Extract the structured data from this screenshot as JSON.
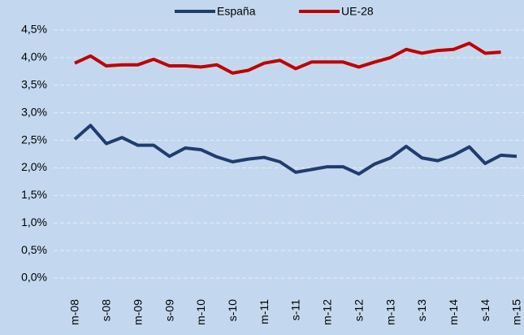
{
  "chart_data": {
    "type": "line",
    "categories": [
      "m-08",
      null,
      "s-08",
      null,
      "m-09",
      null,
      "s-09",
      null,
      "m-10",
      null,
      "s-10",
      null,
      "m-11",
      null,
      "s-11",
      null,
      "m-12",
      null,
      "s-12",
      null,
      "m-13",
      null,
      "s-13",
      null,
      "m-14",
      null,
      "s-14",
      null,
      "m-15"
    ],
    "series": [
      {
        "name": "España",
        "color": "#1f3d6e",
        "values": [
          2.52,
          2.77,
          2.44,
          2.55,
          2.41,
          2.41,
          2.21,
          2.36,
          2.33,
          2.2,
          2.11,
          2.16,
          2.19,
          2.11,
          1.92,
          1.97,
          2.02,
          2.02,
          1.89,
          2.07,
          2.18,
          2.39,
          2.18,
          2.13,
          2.23,
          2.38,
          2.08,
          2.23,
          2.21
        ]
      },
      {
        "name": "UE-28",
        "color": "#c00000",
        "values": [
          3.9,
          4.03,
          3.85,
          3.87,
          3.87,
          3.97,
          3.85,
          3.85,
          3.83,
          3.87,
          3.72,
          3.77,
          3.9,
          3.95,
          3.8,
          3.92,
          3.92,
          3.92,
          3.83,
          3.92,
          4.0,
          4.15,
          4.08,
          4.13,
          4.15,
          4.26,
          4.08,
          4.1,
          null
        ]
      }
    ],
    "ylim": [
      0,
      4.5
    ],
    "yticks": [
      {
        "value": 0,
        "label": "0,0%"
      },
      {
        "value": 0.5,
        "label": "0,5%"
      },
      {
        "value": 1,
        "label": "1,0%"
      },
      {
        "value": 1.5,
        "label": "1,5%"
      },
      {
        "value": 2,
        "label": "2,0%"
      },
      {
        "value": 2.5,
        "label": "2,5%"
      },
      {
        "value": 3,
        "label": "3,0%"
      },
      {
        "value": 3.5,
        "label": "3,5%"
      },
      {
        "value": 4,
        "label": "4,0%"
      },
      {
        "value": 4.5,
        "label": "4,5%"
      }
    ],
    "grid": true,
    "legend": "top"
  }
}
